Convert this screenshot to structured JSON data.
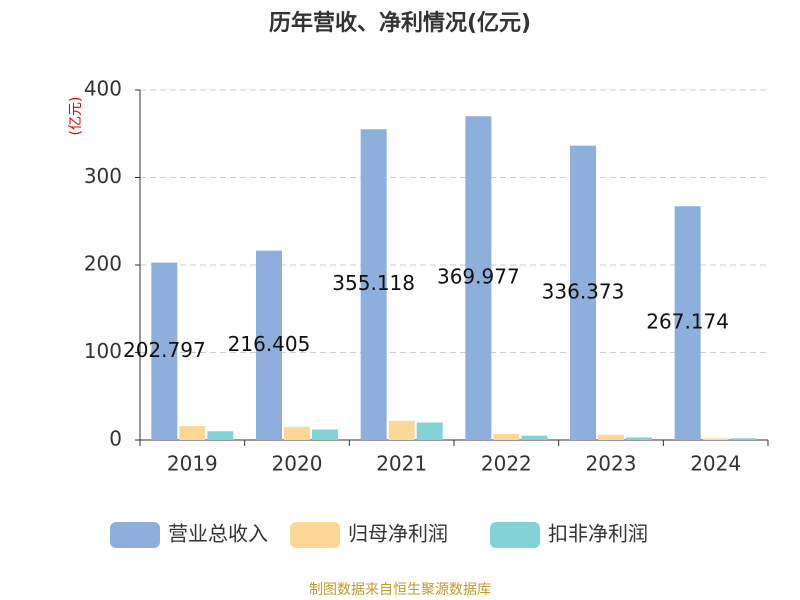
{
  "chart_data": {
    "type": "bar",
    "title": "历年营收、净利情况(亿元)",
    "y_label": "(亿元)",
    "categories": [
      "2019",
      "2020",
      "2021",
      "2022",
      "2023",
      "2024"
    ],
    "series": [
      {
        "name": "营业总收入",
        "color": "#8eaedb",
        "values": [
          202.797,
          216.405,
          355.118,
          369.977,
          336.373,
          267.174
        ],
        "show_labels": true
      },
      {
        "name": "归母净利润",
        "color": "#fdd795",
        "values": [
          16,
          15,
          22,
          7,
          6,
          2
        ]
      },
      {
        "name": "扣非净利润",
        "color": "#83d3d6",
        "values": [
          10,
          12,
          20,
          5,
          3,
          2
        ]
      }
    ],
    "ylim": [
      0,
      400
    ],
    "yticks": [
      0,
      100,
      200,
      300,
      400
    ],
    "grid": true,
    "legend": "bottom",
    "source": "制图数据来自恒生聚源数据库"
  }
}
